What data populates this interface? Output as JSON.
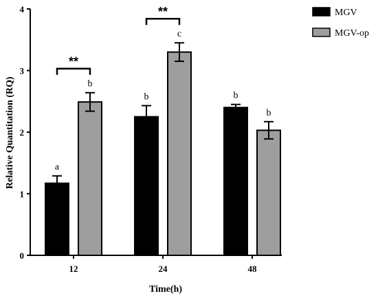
{
  "chart_data": {
    "type": "bar",
    "title": "",
    "xlabel": "Time(h)",
    "ylabel": "Relative Quantitation (RQ)",
    "ylim": [
      0,
      4
    ],
    "yticks": [
      "0",
      "1",
      "2",
      "3",
      "4"
    ],
    "categories": [
      "12",
      "24",
      "48"
    ],
    "grid": false,
    "legend_position": "top-right",
    "series": [
      {
        "name": "MGV",
        "color": "#000000",
        "values": [
          1.17,
          2.25,
          2.4
        ],
        "errors": [
          0.12,
          0.18,
          0.05
        ],
        "letters": [
          "a",
          "b",
          "b"
        ]
      },
      {
        "name": "MGV-op",
        "color": "#9e9e9e",
        "values": [
          2.49,
          3.3,
          2.03
        ],
        "errors": [
          0.15,
          0.15,
          0.14
        ],
        "letters": [
          "b",
          "c",
          "b"
        ]
      }
    ],
    "significance": [
      {
        "category": "12",
        "label": "**"
      },
      {
        "category": "24",
        "label": "**"
      }
    ]
  }
}
